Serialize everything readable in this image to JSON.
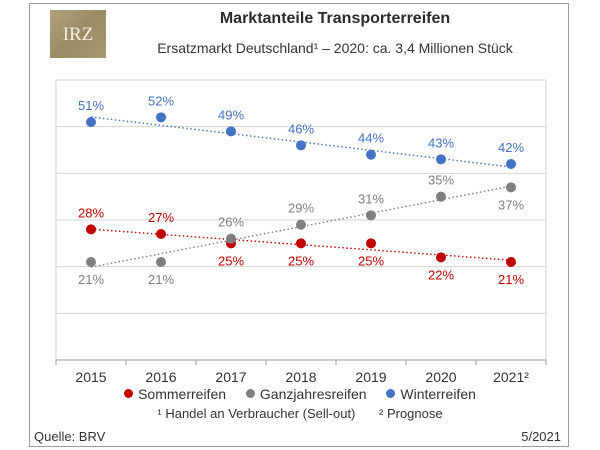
{
  "logo": {
    "text": "IRZ"
  },
  "chart_data": {
    "type": "scatter",
    "title": "Marktanteile Transporterreifen",
    "subtitle": "Ersatzmarkt Deutschland¹ – 2020: ca. 3,4 Millionen Stück",
    "categories": [
      "2015",
      "2016",
      "2017",
      "2018",
      "2019",
      "2020",
      "2021²"
    ],
    "series": [
      {
        "name": "Winterreifen",
        "color": "#4472c4",
        "values": [
          51,
          52,
          49,
          46,
          44,
          43,
          42
        ],
        "labels": [
          "51%",
          "52%",
          "49%",
          "46%",
          "44%",
          "43%",
          "42%"
        ]
      },
      {
        "name": "Sommerreifen",
        "color": "#c00000",
        "values": [
          28,
          27,
          25,
          25,
          25,
          22,
          21
        ],
        "labels": [
          "28%",
          "27%",
          "25%",
          "25%",
          "25%",
          "22%",
          "21%"
        ]
      },
      {
        "name": "Ganzjahresreifen",
        "color": "#7f7f7f",
        "values": [
          21,
          21,
          26,
          29,
          31,
          35,
          37
        ],
        "labels": [
          "21%",
          "21%",
          "26%",
          "29%",
          "31%",
          "35%",
          "37%"
        ]
      }
    ],
    "trendlines": true,
    "ylim": [
      0,
      60
    ],
    "grid": true
  },
  "legend": {
    "items": [
      {
        "label": "Sommerreifen",
        "color": "#c00000"
      },
      {
        "label": "Ganzjahresreifen",
        "color": "#7f7f7f"
      },
      {
        "label": "Winterreifen",
        "color": "#4472c4"
      }
    ]
  },
  "footnotes": {
    "note1": "¹ Handel an Verbraucher (Sell-out)",
    "note2": "² Prognose"
  },
  "source": "Quelle: BRV",
  "date": "5/2021"
}
